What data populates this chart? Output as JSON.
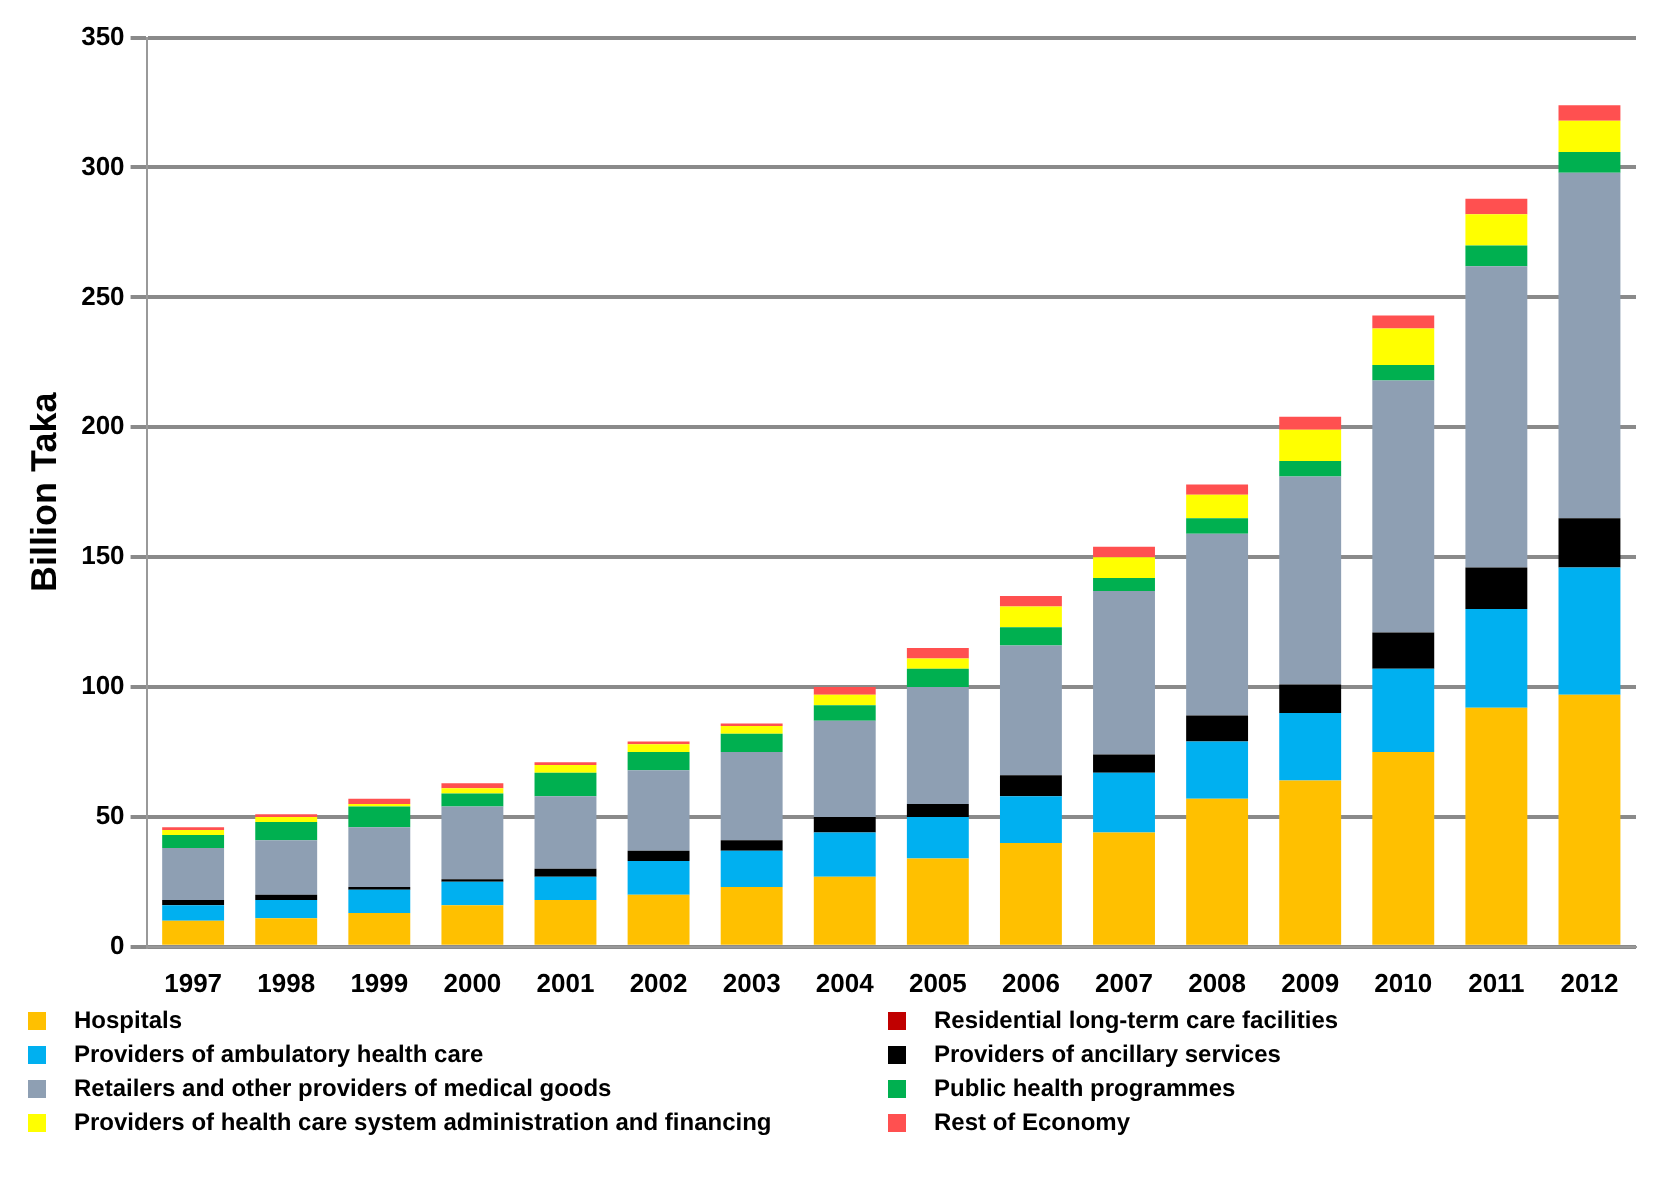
{
  "chart_data": {
    "type": "bar",
    "stacked": true,
    "ylabel": "Billion Taka",
    "categories": [
      "1997",
      "1998",
      "1999",
      "2000",
      "2001",
      "2002",
      "2003",
      "2004",
      "2005",
      "2006",
      "2007",
      "2008",
      "2009",
      "2010",
      "2011",
      "2012"
    ],
    "series": [
      {
        "name": "Hospitals",
        "color": "#ffc000",
        "values": [
          10,
          11,
          13,
          16,
          18,
          20,
          23,
          27,
          34,
          40,
          44,
          57,
          64,
          75,
          92,
          97
        ]
      },
      {
        "name": "Residential long-term care facilities",
        "color": "#c00000",
        "values": [
          0,
          0,
          0,
          0,
          0,
          0,
          0,
          0,
          0,
          0,
          0,
          0,
          0,
          0,
          0,
          0
        ]
      },
      {
        "name": "Providers of ambulatory health care",
        "color": "#00b0f0",
        "values": [
          6,
          7,
          9,
          9,
          9,
          13,
          14,
          17,
          16,
          18,
          23,
          22,
          26,
          32,
          38,
          49
        ]
      },
      {
        "name": "Providers of ancillary services",
        "color": "#000000",
        "values": [
          2,
          2,
          1,
          1,
          3,
          4,
          4,
          6,
          5,
          8,
          7,
          10,
          11,
          14,
          16,
          19
        ]
      },
      {
        "name": "Retailers and other providers of medical goods",
        "color": "#8e9fb3",
        "values": [
          20,
          21,
          23,
          28,
          28,
          31,
          34,
          37,
          45,
          50,
          63,
          70,
          80,
          97,
          116,
          133
        ]
      },
      {
        "name": "Public health programmes",
        "color": "#00b050",
        "values": [
          5,
          7,
          8,
          5,
          9,
          7,
          7,
          6,
          7,
          7,
          5,
          6,
          6,
          6,
          8,
          8
        ]
      },
      {
        "name": "Providers of health care system administration and financing",
        "color": "#ffff00",
        "values": [
          2,
          2,
          1,
          2,
          3,
          3,
          3,
          4,
          4,
          8,
          8,
          9,
          12,
          14,
          12,
          12
        ]
      },
      {
        "name": "Rest of Economy",
        "color": "#ff5050",
        "values": [
          1,
          1,
          2,
          2,
          1,
          1,
          1,
          3,
          4,
          4,
          4,
          4,
          5,
          5,
          6,
          6
        ]
      }
    ],
    "ylim": [
      0,
      350
    ],
    "yticks": [
      0,
      50,
      100,
      150,
      200,
      250,
      300,
      350
    ],
    "grid": "y",
    "legend": "bottom"
  }
}
